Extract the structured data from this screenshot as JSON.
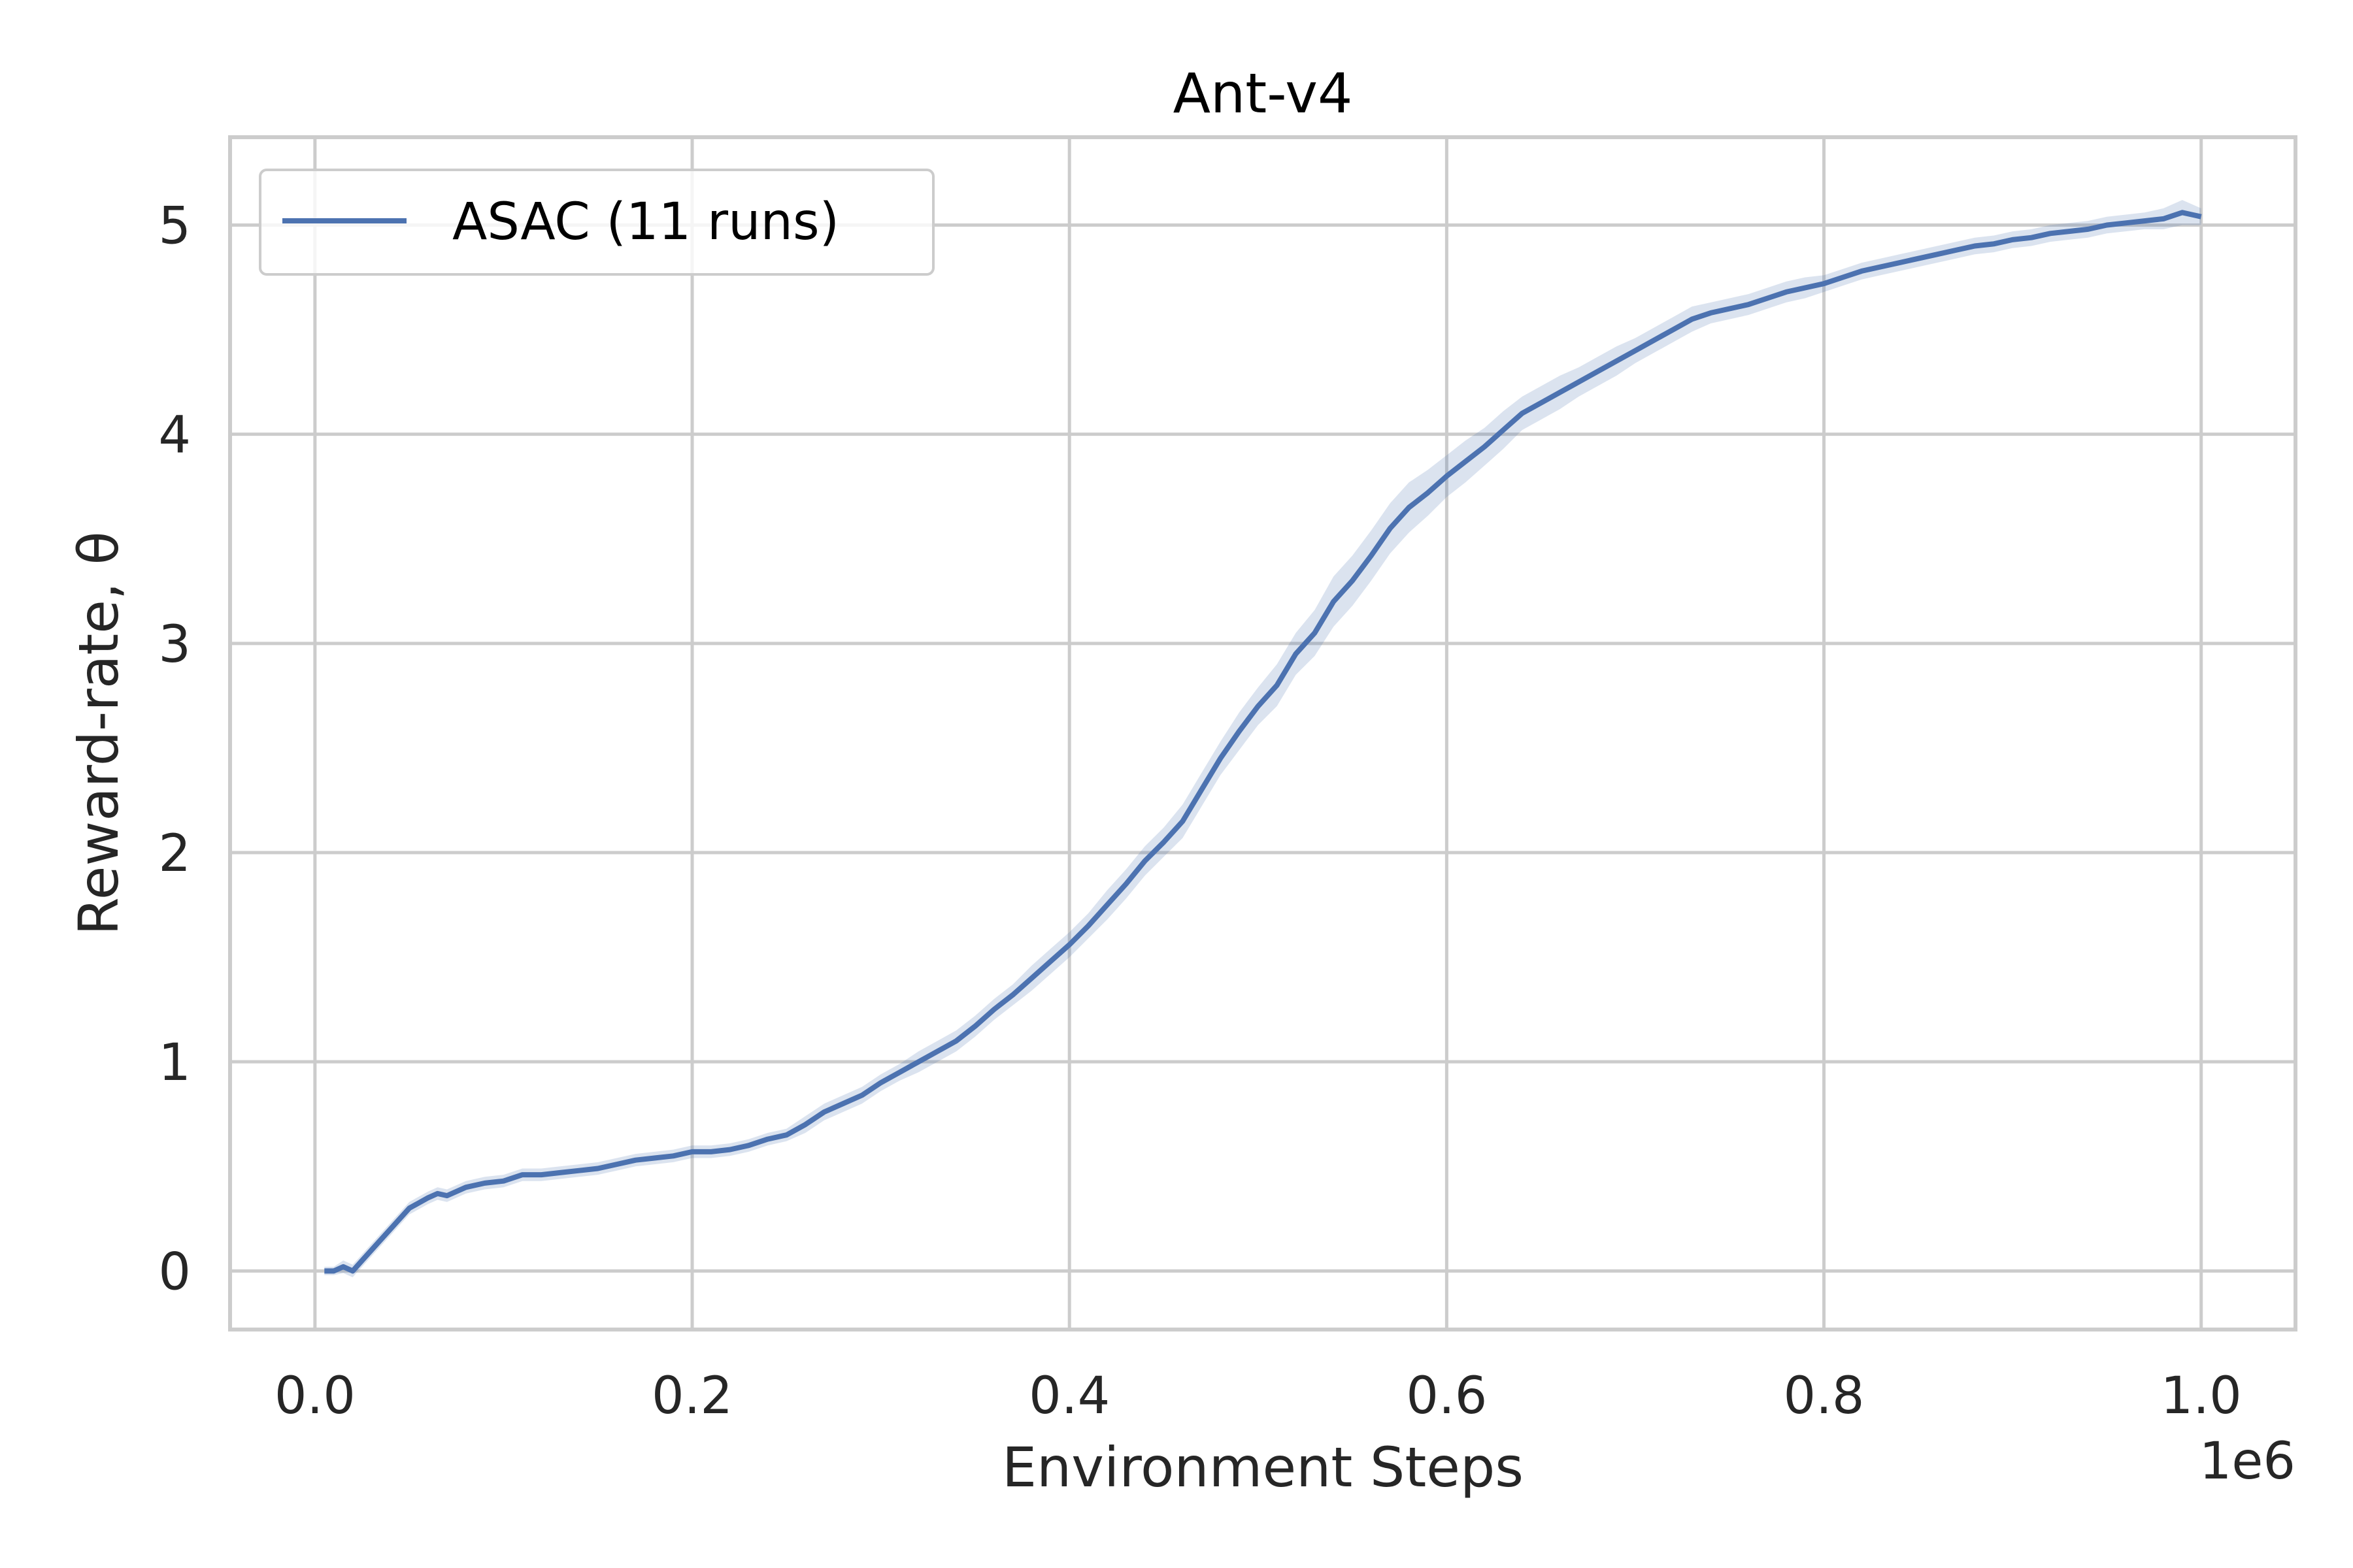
{
  "chart_data": {
    "type": "line",
    "title": "Ant-v4",
    "xlabel": "Environment Steps",
    "ylabel": "Reward-rate, θ",
    "x_offset_text": "1e6",
    "xlim": [
      -0.045,
      1.05
    ],
    "ylim": [
      -0.28,
      5.42
    ],
    "xticks": [
      0.0,
      0.2,
      0.4,
      0.6,
      0.8,
      1.0
    ],
    "xtick_labels": [
      "0.0",
      "0.2",
      "0.4",
      "0.6",
      "0.8",
      "1.0"
    ],
    "yticks": [
      0,
      1,
      2,
      3,
      4,
      5
    ],
    "ytick_labels": [
      "0",
      "1",
      "2",
      "3",
      "4",
      "5"
    ],
    "grid": true,
    "legend_position": "top-left",
    "colors": {
      "line": "#4c72b0",
      "band": "#4c72b0",
      "grid": "#cccccc",
      "spine": "#cccccc"
    },
    "series": [
      {
        "name": "ASAC (11 runs)",
        "x": [
          0.005,
          0.01,
          0.015,
          0.02,
          0.025,
          0.03,
          0.04,
          0.05,
          0.06,
          0.065,
          0.07,
          0.08,
          0.09,
          0.1,
          0.11,
          0.12,
          0.13,
          0.14,
          0.15,
          0.16,
          0.17,
          0.18,
          0.19,
          0.2,
          0.21,
          0.22,
          0.23,
          0.24,
          0.25,
          0.26,
          0.27,
          0.28,
          0.29,
          0.3,
          0.31,
          0.32,
          0.33,
          0.34,
          0.35,
          0.36,
          0.37,
          0.38,
          0.39,
          0.4,
          0.41,
          0.42,
          0.43,
          0.44,
          0.45,
          0.46,
          0.47,
          0.48,
          0.49,
          0.5,
          0.51,
          0.52,
          0.53,
          0.54,
          0.55,
          0.56,
          0.57,
          0.58,
          0.59,
          0.6,
          0.61,
          0.62,
          0.63,
          0.64,
          0.65,
          0.66,
          0.67,
          0.68,
          0.69,
          0.7,
          0.71,
          0.72,
          0.73,
          0.74,
          0.75,
          0.76,
          0.77,
          0.78,
          0.79,
          0.8,
          0.81,
          0.82,
          0.83,
          0.84,
          0.85,
          0.86,
          0.87,
          0.88,
          0.89,
          0.9,
          0.91,
          0.92,
          0.93,
          0.94,
          0.95,
          0.96,
          0.97,
          0.98,
          0.99,
          0.995,
          1.0
        ],
        "y": [
          0.0,
          0.0,
          0.02,
          0.0,
          0.05,
          0.1,
          0.2,
          0.3,
          0.35,
          0.37,
          0.36,
          0.4,
          0.42,
          0.43,
          0.46,
          0.46,
          0.47,
          0.48,
          0.49,
          0.51,
          0.53,
          0.54,
          0.55,
          0.57,
          0.57,
          0.58,
          0.6,
          0.63,
          0.65,
          0.7,
          0.76,
          0.8,
          0.84,
          0.9,
          0.95,
          1.0,
          1.05,
          1.1,
          1.17,
          1.25,
          1.32,
          1.4,
          1.48,
          1.56,
          1.65,
          1.75,
          1.85,
          1.96,
          2.05,
          2.15,
          2.3,
          2.45,
          2.58,
          2.7,
          2.8,
          2.95,
          3.05,
          3.2,
          3.3,
          3.42,
          3.55,
          3.65,
          3.72,
          3.8,
          3.87,
          3.94,
          4.02,
          4.1,
          4.15,
          4.2,
          4.25,
          4.3,
          4.35,
          4.4,
          4.45,
          4.5,
          4.55,
          4.58,
          4.6,
          4.62,
          4.65,
          4.68,
          4.7,
          4.72,
          4.75,
          4.78,
          4.8,
          4.82,
          4.84,
          4.86,
          4.88,
          4.9,
          4.91,
          4.93,
          4.94,
          4.96,
          4.97,
          4.98,
          5.0,
          5.01,
          5.02,
          5.03,
          5.06,
          5.05,
          5.04
        ],
        "band_half_width": [
          0.02,
          0.02,
          0.03,
          0.03,
          0.03,
          0.03,
          0.03,
          0.03,
          0.03,
          0.03,
          0.03,
          0.03,
          0.03,
          0.03,
          0.03,
          0.03,
          0.03,
          0.03,
          0.03,
          0.03,
          0.03,
          0.03,
          0.03,
          0.03,
          0.03,
          0.03,
          0.03,
          0.03,
          0.03,
          0.04,
          0.04,
          0.04,
          0.04,
          0.04,
          0.04,
          0.05,
          0.05,
          0.05,
          0.05,
          0.05,
          0.05,
          0.06,
          0.06,
          0.06,
          0.06,
          0.07,
          0.07,
          0.07,
          0.07,
          0.08,
          0.08,
          0.08,
          0.09,
          0.09,
          0.1,
          0.1,
          0.11,
          0.12,
          0.12,
          0.12,
          0.12,
          0.12,
          0.11,
          0.1,
          0.1,
          0.09,
          0.09,
          0.08,
          0.08,
          0.08,
          0.07,
          0.07,
          0.07,
          0.06,
          0.06,
          0.06,
          0.06,
          0.05,
          0.05,
          0.05,
          0.05,
          0.05,
          0.05,
          0.04,
          0.04,
          0.04,
          0.04,
          0.04,
          0.04,
          0.04,
          0.04,
          0.04,
          0.04,
          0.04,
          0.04,
          0.04,
          0.04,
          0.04,
          0.04,
          0.04,
          0.04,
          0.05,
          0.06,
          0.05,
          0.04
        ]
      }
    ]
  }
}
